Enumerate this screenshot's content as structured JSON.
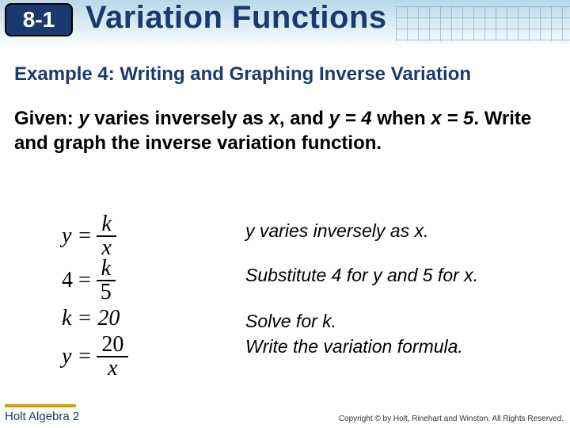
{
  "header": {
    "lesson_number": "8-1",
    "title": "Variation Functions",
    "badge_bg": "#1a3a6e",
    "title_color": "#1a3a6e"
  },
  "example": {
    "heading": "Example 4: Writing and Graphing Inverse Variation",
    "given_html_parts": {
      "p1": "Given: ",
      "y": "y",
      "p2": " varies inversely as ",
      "x": "x",
      "p3": ", and ",
      "eq1": "y = 4",
      "p4": " when ",
      "eq2": "x = 5",
      "p5": ". Write and graph the inverse variation function."
    }
  },
  "math": {
    "line1": {
      "lhs": "y =",
      "num": "k",
      "den": "x"
    },
    "line2": {
      "lhs": "4 =",
      "num": "k",
      "den": "5"
    },
    "line3": "k = 20",
    "line4": {
      "lhs": "y =",
      "num": "20",
      "den": "x"
    }
  },
  "explanations": {
    "e1": "y varies inversely as x.",
    "e2": "Substitute 4 for y and 5 for x.",
    "e3": "Solve for k.",
    "e4": "Write the variation formula."
  },
  "footer": {
    "left": "Holt Algebra 2",
    "right": "Copyright © by Holt, Rinehart and Winston. All Rights Reserved."
  },
  "colors": {
    "accent": "#1a3a6e",
    "gold": "#d4a000",
    "grid": "#5a9bc4"
  }
}
